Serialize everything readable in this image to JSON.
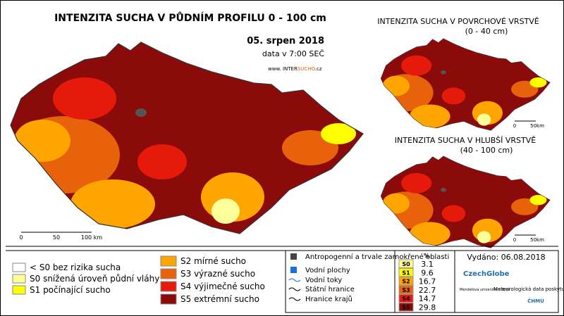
{
  "main_map": {
    "title": "INTENZITA SUCHA V PŮDNÍM PROFILU 0 - 100 cm",
    "date": "05. srpen 2018",
    "time": "data v 7:00 SEČ",
    "url": [
      "www. INTER",
      "SUCHO",
      ".cz"
    ],
    "scale": [
      "0",
      "50",
      "100 km"
    ]
  },
  "surface_map": {
    "title": "INTENZITA SUCHA V POVRCHOVÉ VRSTVĚ",
    "subtitle": "(0 - 40 cm)",
    "scale": [
      "0",
      "50km"
    ]
  },
  "deep_map": {
    "title": "INTENZITA SUCHA V HLUBŠÍ VRSTVĚ",
    "subtitle": "(40 - 100 cm)",
    "scale": [
      "0",
      "50km"
    ]
  },
  "legend": {
    "drought": [
      {
        "label": "< S0 bez rizika sucha",
        "color": "#ffffff"
      },
      {
        "label": "S0 snížená úroveň půdní vláhy",
        "color": "#ffff99"
      },
      {
        "label": "S1 počínající sucho",
        "color": "#ffff00"
      },
      {
        "label": "S2 mírné sucho",
        "color": "#ffa500"
      },
      {
        "label": "S3 výrazné sucho",
        "color": "#e8620c"
      },
      {
        "label": "S4 výjimečné sucho",
        "color": "#e61a0a"
      },
      {
        "label": "S5 extrémní sucho",
        "color": "#8b0a0a"
      }
    ],
    "other": [
      "Antropogenní a trvale zamokřené oblasti",
      "Vodní plochy",
      "Vodní toky",
      "Státní hranice",
      "Hranice krajů"
    ]
  },
  "table": {
    "header": "%",
    "rows": [
      [
        "S0",
        3.1
      ],
      [
        "S1",
        9.6
      ],
      [
        "S2",
        16.7
      ],
      [
        "S3",
        22.7
      ],
      [
        "S4",
        14.7
      ],
      [
        "S5",
        29.8
      ]
    ]
  },
  "issued": "Vydáno: 06.08.2018",
  "logos": {
    "czechglobe": "CzechGlobe",
    "mendelu": "Mendelova univerzita v Brně",
    "data": "Meteorologická data poskytuje:",
    "chmu": "ČHMÚ"
  }
}
